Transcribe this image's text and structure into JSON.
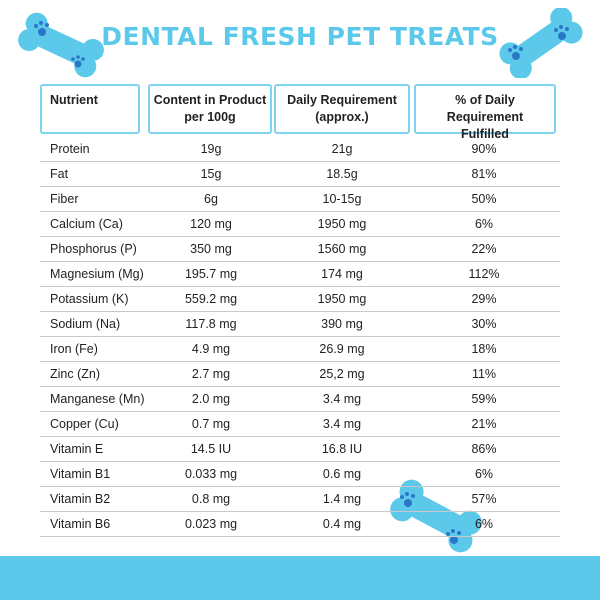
{
  "title": "DENTAL FRESH PET TREATS",
  "colors": {
    "accent": "#5cc9ea",
    "bone": "#5cc9ea",
    "paw": "#2a77c9"
  },
  "icons": [
    "bone-paw-icon"
  ],
  "headers": [
    "Nutrient",
    "Content in Product\nper 100g",
    "Daily Requirement\n(approx.)",
    "% of Daily Requirement\nFulfilled"
  ],
  "rows": [
    [
      "Protein",
      "19g",
      "21g",
      "90%"
    ],
    [
      "Fat",
      "15g",
      "18.5g",
      "81%"
    ],
    [
      "Fiber",
      "6g",
      "10-15g",
      "50%"
    ],
    [
      "Calcium (Ca)",
      "120 mg",
      "1950 mg",
      "6%"
    ],
    [
      "Phosphorus (P)",
      "350 mg",
      "1560 mg",
      "22%"
    ],
    [
      "Magnesium (Mg)",
      "195.7 mg",
      "174 mg",
      "112%"
    ],
    [
      "Potassium (K)",
      "559.2 mg",
      "1950 mg",
      "29%"
    ],
    [
      "Sodium (Na)",
      "117.8 mg",
      "390 mg",
      "30%"
    ],
    [
      "Iron (Fe)",
      "4.9 mg",
      "26.9 mg",
      "18%"
    ],
    [
      "Zinc (Zn)",
      "2.7 mg",
      "25,2 mg",
      "11%"
    ],
    [
      "Manganese (Mn)",
      "2.0 mg",
      "3.4 mg",
      "59%"
    ],
    [
      "Copper (Cu)",
      "0.7 mg",
      "3.4 mg",
      "21%"
    ],
    [
      "Vitamin E",
      "14.5 IU",
      "16.8 IU",
      "86%"
    ],
    [
      "Vitamin B1",
      "0.033 mg",
      "0.6 mg",
      "6%"
    ],
    [
      "Vitamin B2",
      "0.8 mg",
      "1.4 mg",
      "57%"
    ],
    [
      "Vitamin B6",
      "0.023 mg",
      "0.4 mg",
      "6%"
    ]
  ]
}
